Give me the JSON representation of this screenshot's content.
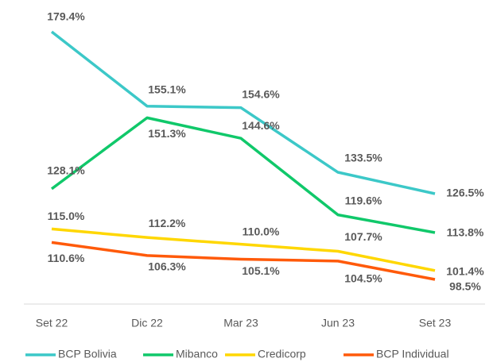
{
  "chart_data": {
    "type": "line",
    "categories": [
      "Set 22",
      "Dic 22",
      "Mar 23",
      "Jun 23",
      "Set 23"
    ],
    "series": [
      {
        "name": "BCP Bolivia",
        "color": "#3cc8c8",
        "values": [
          179.4,
          155.1,
          154.6,
          133.5,
          126.5
        ],
        "value_labels": [
          "179.4%",
          "155.1%",
          "154.6%",
          "133.5%",
          "126.5%"
        ]
      },
      {
        "name": "Mibanco",
        "color": "#10c86a",
        "values": [
          128.1,
          151.3,
          144.6,
          119.6,
          113.8
        ],
        "value_labels": [
          "128.1%",
          "151.3%",
          "144.6%",
          "119.6%",
          "113.8%"
        ]
      },
      {
        "name": "Credicorp",
        "color": "#ffd700",
        "values": [
          115.0,
          112.2,
          110.0,
          107.7,
          101.4
        ],
        "value_labels": [
          "115.0%",
          "112.2%",
          "110.0%",
          "107.7%",
          "101.4%"
        ]
      },
      {
        "name": "BCP Individual",
        "color": "#ff5a0a",
        "values": [
          110.6,
          106.3,
          105.1,
          104.5,
          98.5
        ],
        "value_labels": [
          "110.6%",
          "106.3%",
          "105.1%",
          "104.5%",
          "98.5%"
        ]
      }
    ]
  }
}
